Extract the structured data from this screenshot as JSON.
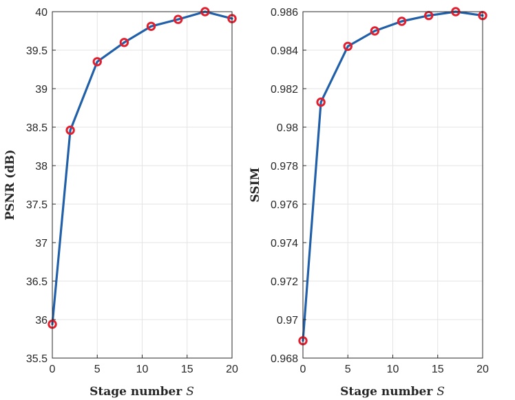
{
  "colors": {
    "line": "#2160a8",
    "marker": "#e0202e",
    "grid": "#e3e3e3",
    "axis": "#262626"
  },
  "chart_data": [
    {
      "type": "line",
      "xlabel": "Stage number",
      "xlabel_var": "S",
      "ylabel": "PSNR (dB)",
      "xlim": [
        0,
        20
      ],
      "ylim": [
        35.5,
        40
      ],
      "grid": true,
      "x_ticks": [
        "0",
        "5",
        "10",
        "15",
        "20"
      ],
      "y_ticks": [
        "35.5",
        "36",
        "36.5",
        "37",
        "37.5",
        "38",
        "38.5",
        "39",
        "39.5",
        "40"
      ],
      "series": [
        {
          "x": [
            0,
            2,
            5,
            8,
            11,
            14,
            17,
            20
          ],
          "values": [
            35.94,
            38.46,
            39.35,
            39.6,
            39.81,
            39.9,
            40.0,
            39.91
          ]
        }
      ]
    },
    {
      "type": "line",
      "xlabel": "Stage number",
      "xlabel_var": "S",
      "ylabel": "SSIM",
      "xlim": [
        0,
        20
      ],
      "ylim": [
        0.968,
        0.986
      ],
      "grid": true,
      "x_ticks": [
        "0",
        "5",
        "10",
        "15",
        "20"
      ],
      "y_ticks": [
        "0.968",
        "0.97",
        "0.972",
        "0.974",
        "0.976",
        "0.978",
        "0.98",
        "0.982",
        "0.984",
        "0.986"
      ],
      "series": [
        {
          "x": [
            0,
            2,
            5,
            8,
            11,
            14,
            17,
            20
          ],
          "values": [
            0.9689,
            0.9813,
            0.9842,
            0.985,
            0.9855,
            0.9858,
            0.986,
            0.9858
          ]
        }
      ]
    }
  ]
}
